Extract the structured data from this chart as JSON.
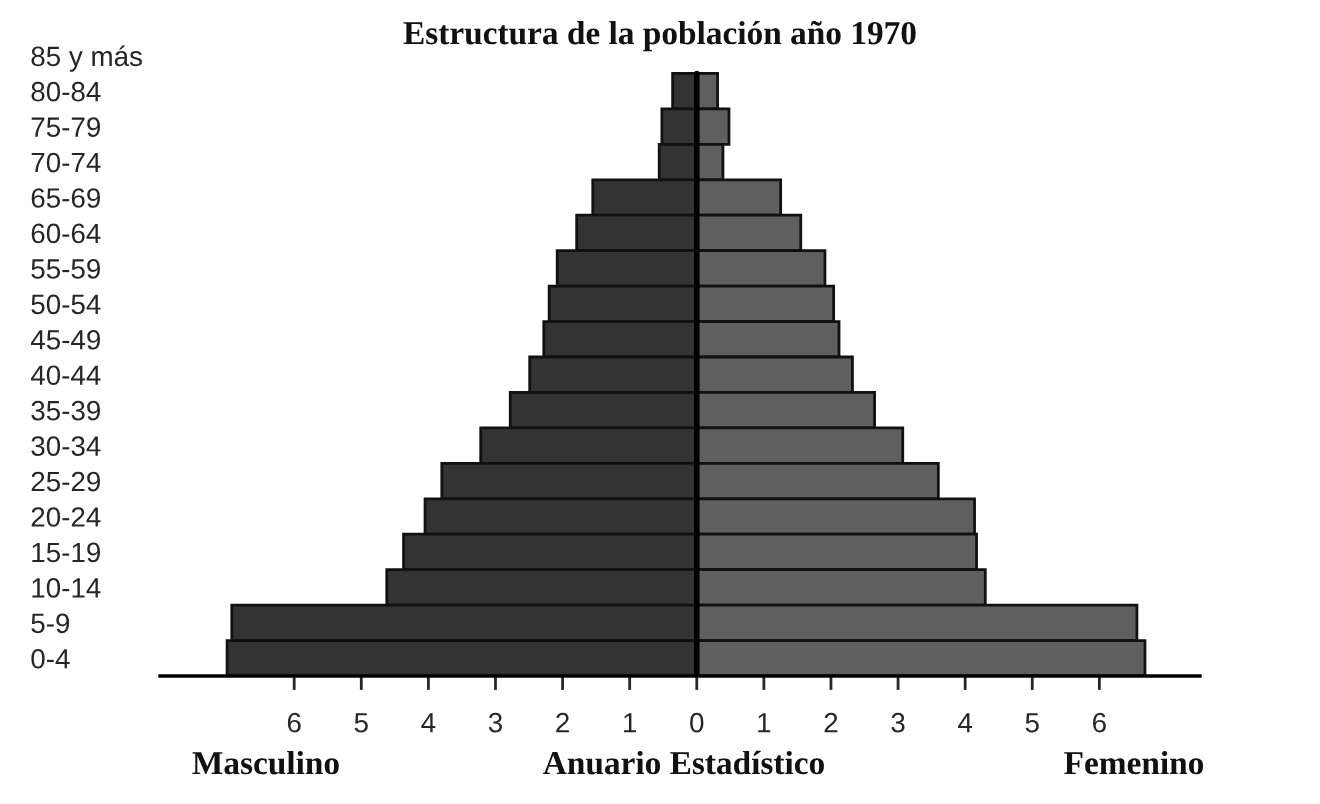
{
  "chart_data": {
    "type": "bar",
    "orientation": "horizontal",
    "stacked": true,
    "title": "Estructura de la población año 1970",
    "categories": [
      "85 y más",
      "80-84",
      "75-79",
      "70-74",
      "65-69",
      "60-64",
      "55-59",
      "50-54",
      "45-49",
      "40-44",
      "35-39",
      "30-34",
      "25-29",
      "20-24",
      "15-19",
      "10-14",
      "5-9",
      "0-4"
    ],
    "series": [
      {
        "name": "Masculino",
        "color": "#333333",
        "values": [
          null,
          -0.36,
          -0.52,
          -0.56,
          -1.55,
          -1.79,
          -2.08,
          -2.2,
          -2.28,
          -2.49,
          -2.78,
          -3.22,
          -3.8,
          -4.05,
          -4.37,
          -4.62,
          -6.93,
          -7.0
        ]
      },
      {
        "name": "Femenino",
        "color": "#5f5f5f",
        "values": [
          null,
          0.31,
          0.48,
          0.39,
          1.25,
          1.55,
          1.91,
          2.04,
          2.12,
          2.32,
          2.65,
          3.07,
          3.6,
          4.14,
          4.17,
          4.3,
          6.56,
          6.68
        ]
      }
    ],
    "xlim": [
      -8,
      7.5
    ],
    "xticks": [
      {
        "value": -6,
        "label": "6"
      },
      {
        "value": -5,
        "label": "5"
      },
      {
        "value": -4,
        "label": "4"
      },
      {
        "value": -3,
        "label": "3"
      },
      {
        "value": -2,
        "label": "2"
      },
      {
        "value": -1,
        "label": "1"
      },
      0,
      1,
      2,
      3,
      4,
      5,
      6
    ],
    "ref_lines": [
      {
        "axis": "x",
        "value": 0,
        "color": "#000000"
      }
    ],
    "annotations": [
      "Anuario Estadístico"
    ],
    "grid": false,
    "legend": "bottom"
  }
}
